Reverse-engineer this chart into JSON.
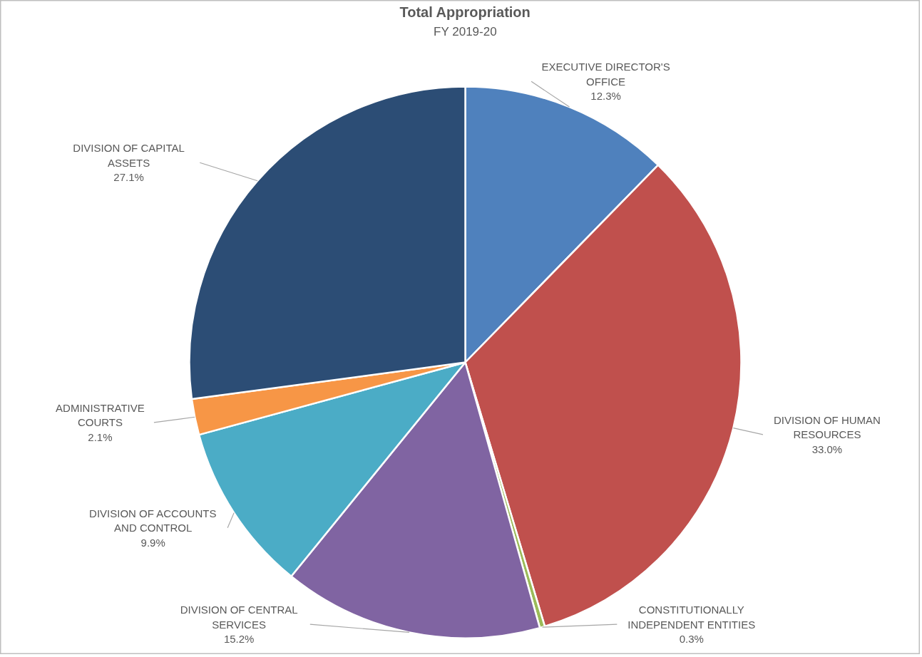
{
  "chart_data": {
    "type": "pie",
    "title": "Total Appropriation",
    "subtitle": "FY 2019-20",
    "categories": [
      "EXECUTIVE DIRECTOR'S OFFICE",
      "DIVISION OF HUMAN RESOURCES",
      "CONSTITUTIONALLY INDEPENDENT ENTITIES",
      "DIVISION OF CENTRAL SERVICES",
      "DIVISION OF ACCOUNTS AND CONTROL",
      "ADMINISTRATIVE COURTS",
      "DIVISION OF CAPITAL ASSETS"
    ],
    "values": [
      12.3,
      33.0,
      0.3,
      15.2,
      9.9,
      2.1,
      27.1
    ],
    "value_labels": [
      "12.3%",
      "33.0%",
      "0.3%",
      "15.2%",
      "9.9%",
      "2.1%",
      "27.1%"
    ],
    "colors": [
      "#4f81bd",
      "#c0504d",
      "#9bbb59",
      "#8064a2",
      "#4bacc6",
      "#f79646",
      "#2c4d75"
    ]
  }
}
